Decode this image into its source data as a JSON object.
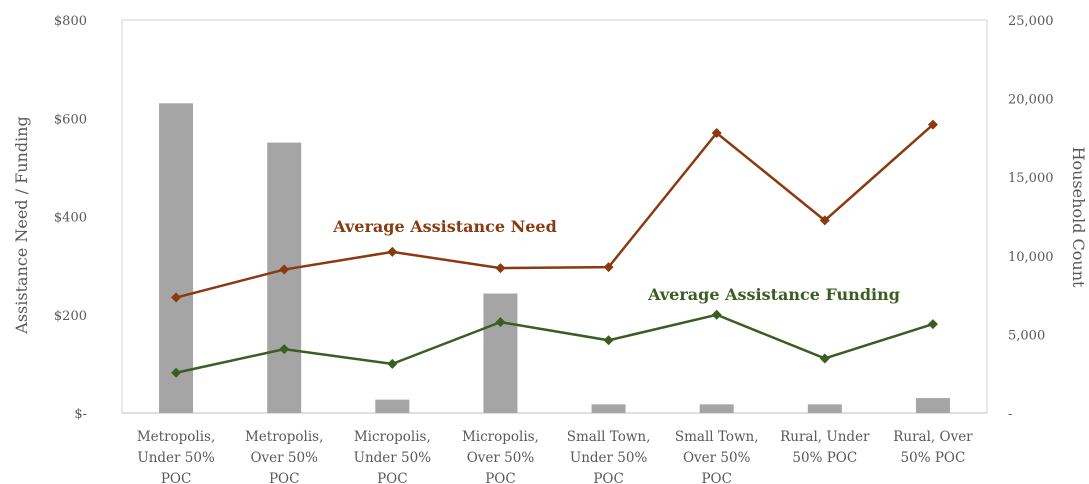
{
  "chart_data": {
    "type": "bar+line",
    "title": "",
    "ylabel": "Assistance Need / Funding",
    "y2label": "Household Count",
    "ylim": [
      0,
      800
    ],
    "y2lim": [
      0,
      25000
    ],
    "y_ticks": [
      "$-",
      "$200",
      "$400",
      "$600",
      "$800"
    ],
    "y2_ticks": [
      "-",
      "5,000",
      "10,000",
      "15,000",
      "20,000",
      "25,000"
    ],
    "categories": [
      [
        "Metropolis,",
        "Under 50%",
        "POC"
      ],
      [
        "Metropolis,",
        "Over 50%",
        "POC"
      ],
      [
        "Micropolis,",
        "Under 50%",
        "POC"
      ],
      [
        "Micropolis,",
        "Over 50%",
        "POC"
      ],
      [
        "Small Town,",
        "Under 50%",
        "POC"
      ],
      [
        "Small Town,",
        "Over 50%",
        "POC"
      ],
      [
        "Rural, Under",
        "50% POC"
      ],
      [
        "Rural, Over",
        "50% POC"
      ]
    ],
    "grid": false,
    "bars": {
      "axis": "secondary",
      "color": "#a5a5a5",
      "values": [
        19700,
        17200,
        850,
        7600,
        550,
        550,
        550,
        950
      ]
    },
    "series": [
      {
        "name": "Average Assistance Need",
        "color": "#8b3a10",
        "axis": "primary",
        "values": [
          235,
          292,
          328,
          295,
          297,
          570,
          392,
          587
        ]
      },
      {
        "name": "Average Assistance Funding",
        "color": "#3a5e22",
        "axis": "primary",
        "values": [
          82,
          130,
          100,
          185,
          148,
          200,
          111,
          181
        ]
      }
    ]
  }
}
